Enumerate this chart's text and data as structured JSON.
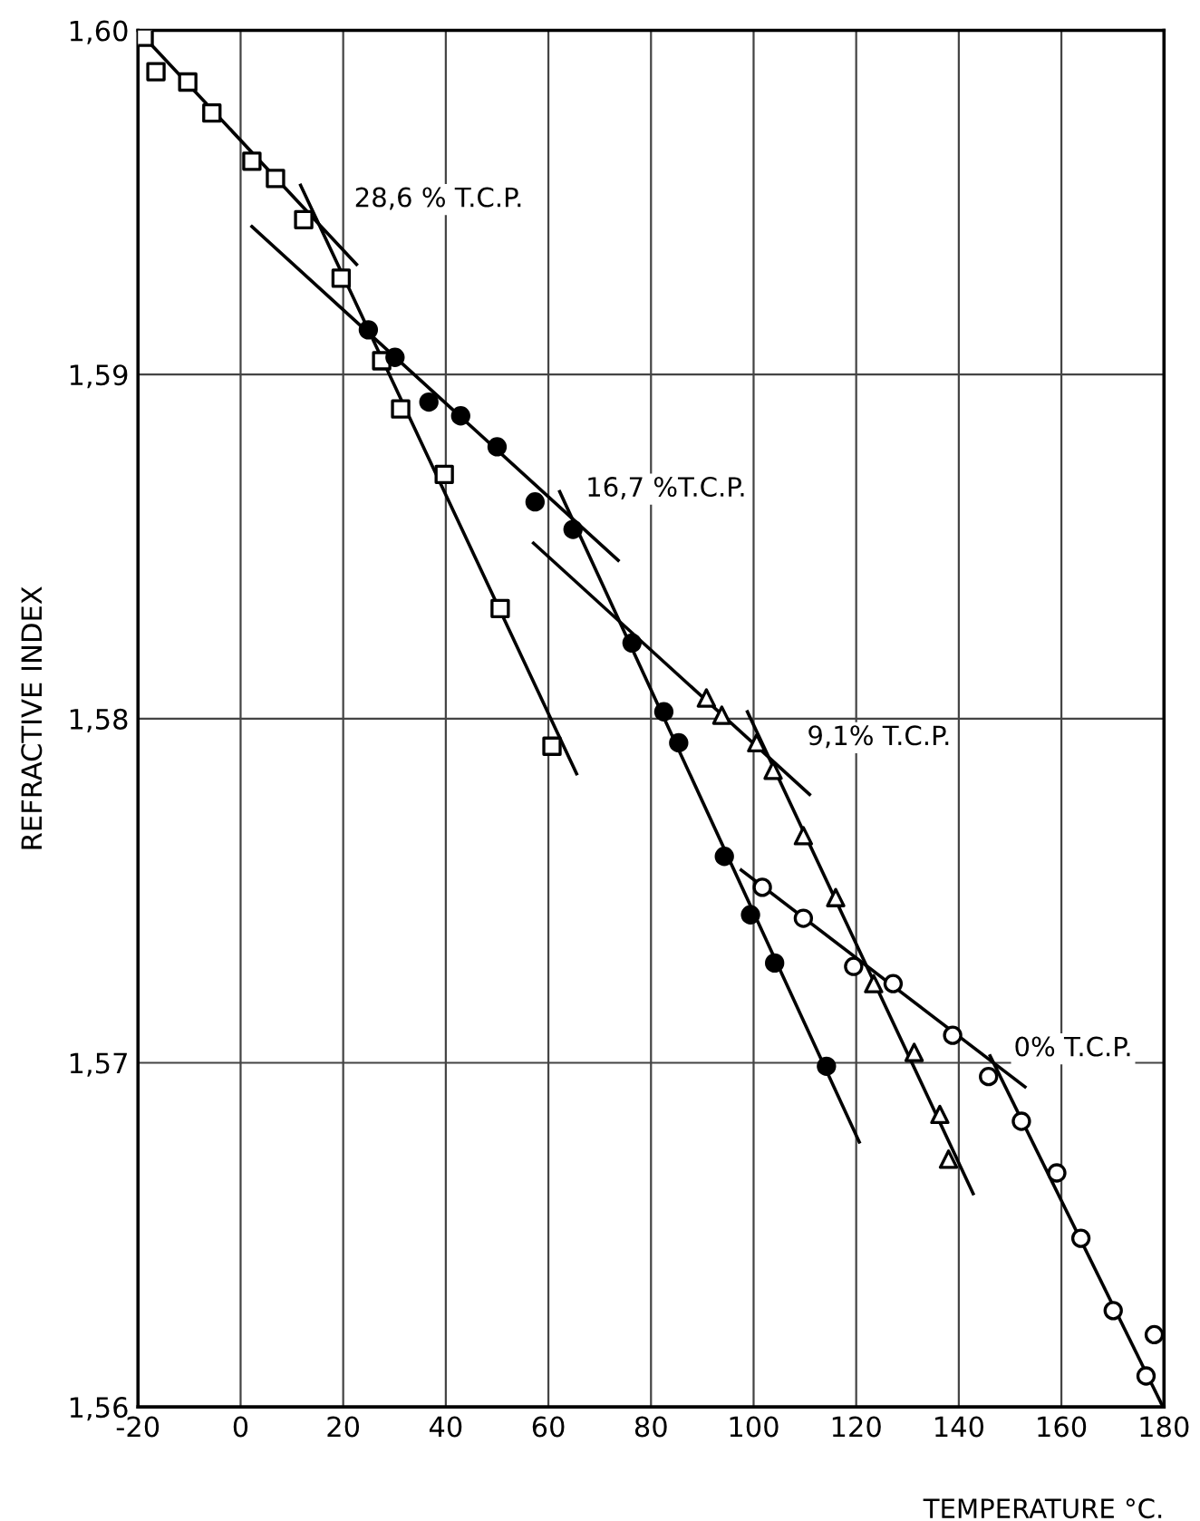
{
  "chart_data": {
    "type": "scatter",
    "xlabel": "TEMPERATURE °C.",
    "ylabel": "REFRACTIVE INDEX",
    "xlim": [
      -20,
      180
    ],
    "ylim": [
      1.56,
      1.6
    ],
    "xticks": [
      -20,
      0,
      20,
      40,
      60,
      80,
      100,
      120,
      140,
      160,
      180
    ],
    "yticks": [
      {
        "value": 1.56,
        "label": "1,56"
      },
      {
        "value": 1.57,
        "label": "1,57"
      },
      {
        "value": 1.58,
        "label": "1,58"
      },
      {
        "value": 1.59,
        "label": "1,59"
      },
      {
        "value": 1.6,
        "label": "1,60"
      }
    ],
    "grid": true,
    "series": [
      {
        "name": "28,6 % T.C.P.",
        "marker": "square",
        "color": "#000000",
        "x": [
          -18.8,
          -16.5,
          -10.3,
          -5.6,
          2.2,
          6.8,
          12.3,
          19.6,
          27.5,
          31.2,
          39.7,
          50.6,
          60.7
        ],
        "values": [
          1.5998,
          1.5988,
          1.5985,
          1.5976,
          1.5962,
          1.5957,
          1.5945,
          1.5928,
          1.5904,
          1.589,
          1.5871,
          1.5832,
          1.5792
        ]
      },
      {
        "name": "16,7 %T.C.P.",
        "marker": "circle",
        "color": "#000000",
        "x": [
          24.9,
          30.1,
          36.7,
          42.9,
          50.0,
          57.4,
          64.8,
          76.3,
          82.5,
          85.4,
          94.3,
          99.4,
          104.1,
          114.2
        ],
        "values": [
          1.5913,
          1.5905,
          1.5892,
          1.5888,
          1.5879,
          1.5863,
          1.5855,
          1.5822,
          1.5802,
          1.5793,
          1.576,
          1.5743,
          1.5729,
          1.5699
        ]
      },
      {
        "name": "9,1% T.C.P.",
        "marker": "triangle",
        "color": "#000000",
        "x": [
          90.8,
          93.8,
          100.6,
          103.8,
          109.7,
          116.0,
          123.4,
          131.3,
          136.3,
          138.0
        ],
        "values": [
          1.5806,
          1.5801,
          1.5793,
          1.5785,
          1.5766,
          1.5748,
          1.5723,
          1.5703,
          1.5685,
          1.5672
        ]
      },
      {
        "name": "0% T.C.P.",
        "marker": "circle",
        "color": "#000000",
        "x": [
          101.7,
          109.7,
          119.5,
          127.2,
          138.8,
          145.8,
          152.2,
          159.1,
          163.8,
          170.1,
          178.1,
          176.5
        ],
        "values": [
          1.5751,
          1.5742,
          1.5728,
          1.5723,
          1.5708,
          1.5696,
          1.5683,
          1.5668,
          1.5649,
          1.5628,
          1.5621,
          1.5609
        ]
      },
      {
        "type": "line",
        "color": "#000000",
        "x": [
          -20,
          22.6
        ],
        "values": [
          1.6,
          1.5932
        ]
      },
      {
        "type": "line",
        "color": "#000000",
        "x": [
          11.7,
          65.5
        ],
        "values": [
          1.5955,
          1.5784
        ]
      },
      {
        "type": "line",
        "color": "#000000",
        "x": [
          2.2,
          73.6
        ],
        "values": [
          1.5943,
          1.5846
        ]
      },
      {
        "type": "line",
        "color": "#000000",
        "x": [
          62.2,
          120.6
        ],
        "values": [
          1.5866,
          1.5677
        ]
      },
      {
        "type": "line",
        "color": "#000000",
        "x": [
          57.1,
          110.9
        ],
        "values": [
          1.5851,
          1.5778
        ]
      },
      {
        "type": "line",
        "color": "#000000",
        "x": [
          98.8,
          142.8
        ],
        "values": [
          1.5802,
          1.5662
        ]
      },
      {
        "type": "line",
        "color": "#000000",
        "x": [
          97.6,
          152.9
        ],
        "values": [
          1.5756,
          1.5693
        ]
      },
      {
        "type": "line",
        "color": "#000000",
        "x": [
          146.1,
          179.8
        ],
        "values": [
          1.5702,
          1.56
        ]
      }
    ]
  }
}
